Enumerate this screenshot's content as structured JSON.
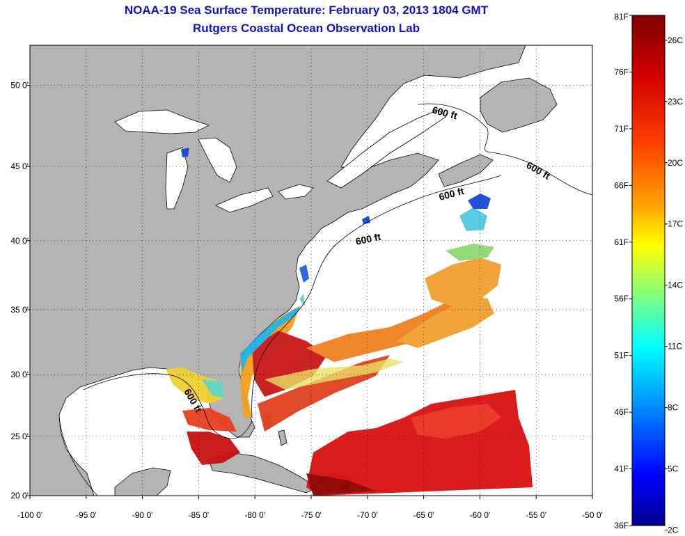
{
  "title": "NOAA-19 Sea Surface Temperature:  February 03, 2013 1804 GMT",
  "subtitle": "Rutgers Coastal Ocean Observation Lab",
  "map": {
    "lon_range": [
      -100,
      -50
    ],
    "lat_range": [
      20,
      52
    ],
    "lon_ticks": [
      "-100 0'",
      "-95 0'",
      "-90 0'",
      "-85 0'",
      "-80 0'",
      "-75 0'",
      "-70 0'",
      "-65 0'",
      "-60 0'",
      "-55 0'",
      "-50 0'"
    ],
    "lat_ticks": [
      "20 0'",
      "25 0'",
      "30 0'",
      "35 0'",
      "40 0'",
      "45 0'",
      "50 0'"
    ],
    "grid": "dotted",
    "contour_labels": [
      "600 ft",
      "600 ft",
      "600 ft",
      "600 ft",
      "600 ft"
    ],
    "colors": {
      "land": "#b4b4b4",
      "ocean": "#ffffff",
      "contour": "#000000"
    }
  },
  "colorbar": {
    "fahrenheit_labels": [
      "81F",
      "76F",
      "71F",
      "66F",
      "61F",
      "56F",
      "51F",
      "46F",
      "41F",
      "36F"
    ],
    "celsius_labels": [
      "26C",
      "23C",
      "20C",
      "17C",
      "14C",
      "11C",
      "8C",
      "5C",
      "2C"
    ],
    "range_f": [
      36,
      81
    ],
    "colormap": [
      "#7f0000",
      "#ff0000",
      "#ff8000",
      "#ffff00",
      "#80ff80",
      "#00ffff",
      "#0080ff",
      "#0000ff",
      "#00008f"
    ]
  }
}
